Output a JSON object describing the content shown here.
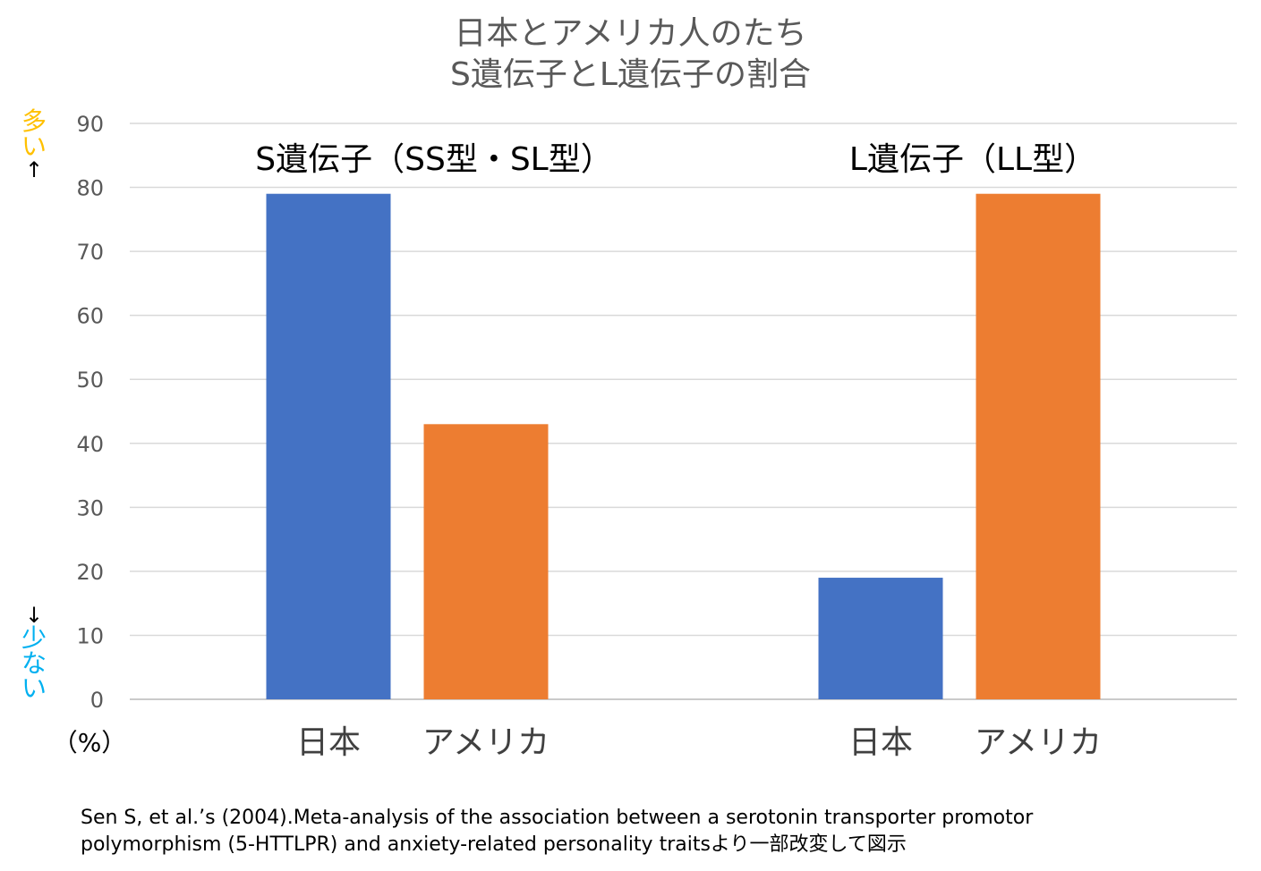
{
  "chart_data": {
    "type": "bar",
    "title_lines": [
      "日本とアメリカ人のたち",
      "S遺伝子とL遺伝子の割合"
    ],
    "groups": [
      {
        "label": "S遺伝子（SS型・SL型）",
        "categories": [
          "日本",
          "アメリカ"
        ],
        "values": [
          79,
          43
        ]
      },
      {
        "label": "L遺伝子（LL型）",
        "categories": [
          "日本",
          "アメリカ"
        ],
        "values": [
          19,
          79
        ]
      }
    ],
    "bar_colors": [
      "#4472C4",
      "#ED7D31"
    ],
    "yticks": [
      "0",
      "10",
      "20",
      "30",
      "40",
      "50",
      "60",
      "70",
      "80",
      "90"
    ],
    "ylim": [
      0,
      90
    ],
    "yunit": "（%）",
    "grid": true,
    "axis_notes": {
      "high": {
        "chars": [
          "多",
          "い"
        ],
        "arrow": "↑",
        "color": "#FFC000"
      },
      "low": {
        "chars": [
          "少",
          "な",
          "い"
        ],
        "arrow": "↓",
        "color": "#00B0F0"
      }
    }
  },
  "citation": {
    "line1": "Sen S, et al.’s (2004).Meta-analysis of the association between a serotonin transporter promotor",
    "line2": "polymorphism (5-HTTLPR) and anxiety-related personality traitsより一部改変して図示"
  }
}
